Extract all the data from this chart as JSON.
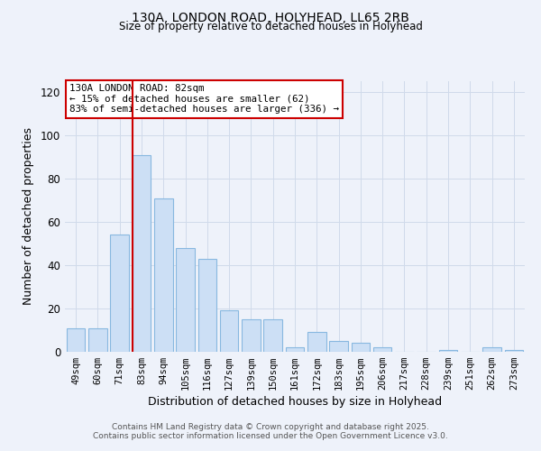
{
  "title": "130A, LONDON ROAD, HOLYHEAD, LL65 2RB",
  "subtitle": "Size of property relative to detached houses in Holyhead",
  "xlabel": "Distribution of detached houses by size in Holyhead",
  "ylabel": "Number of detached properties",
  "bar_labels": [
    "49sqm",
    "60sqm",
    "71sqm",
    "83sqm",
    "94sqm",
    "105sqm",
    "116sqm",
    "127sqm",
    "139sqm",
    "150sqm",
    "161sqm",
    "172sqm",
    "183sqm",
    "195sqm",
    "206sqm",
    "217sqm",
    "228sqm",
    "239sqm",
    "251sqm",
    "262sqm",
    "273sqm"
  ],
  "bar_values": [
    11,
    11,
    54,
    91,
    71,
    48,
    43,
    19,
    15,
    15,
    2,
    9,
    5,
    4,
    2,
    0,
    0,
    1,
    0,
    2,
    1
  ],
  "bar_color": "#ccdff5",
  "bar_edge_color": "#88b8e0",
  "vline_color": "#cc0000",
  "annotation_title": "130A LONDON ROAD: 82sqm",
  "annotation_line1": "← 15% of detached houses are smaller (62)",
  "annotation_line2": "83% of semi-detached houses are larger (336) →",
  "annotation_box_color": "#ffffff",
  "annotation_box_edge": "#cc0000",
  "ylim": [
    0,
    125
  ],
  "yticks": [
    0,
    20,
    40,
    60,
    80,
    100,
    120
  ],
  "grid_color": "#d0daea",
  "background_color": "#eef2fa",
  "footer1": "Contains HM Land Registry data © Crown copyright and database right 2025.",
  "footer2": "Contains public sector information licensed under the Open Government Licence v3.0."
}
